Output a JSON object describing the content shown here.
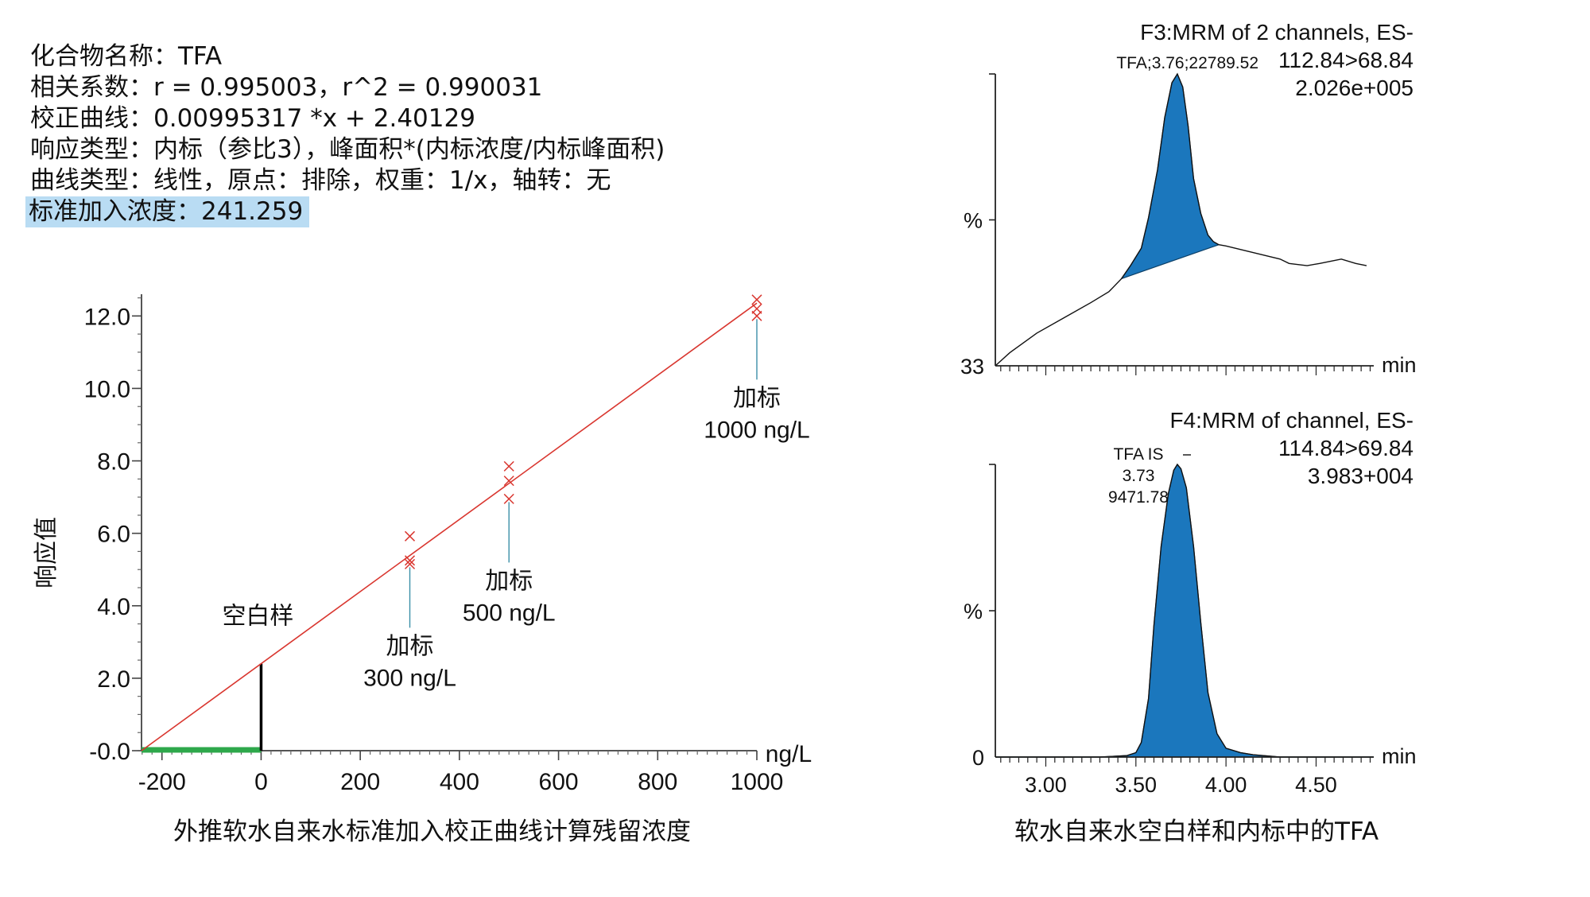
{
  "info": {
    "compound": "化合物名称：TFA",
    "correlation": "相关系数：r = 0.995003，r^2 = 0.990031",
    "calibration": "校正曲线：0.00995317 *x + 2.40129",
    "response": "响应类型：内标（参比3），峰面积*(内标浓度/内标峰面积)",
    "curve": "曲线类型：线性，原点：排除，权重：1/x，轴转：无",
    "std_addition": "标准加入浓度：241.259"
  },
  "captions": {
    "left": "外推软水自来水标准加入校正曲线计算残留浓度",
    "right": "软水自来水空白样和内标中的TFA"
  },
  "colors": {
    "fit": "#d9362f",
    "marker": "#d9362f",
    "extrapolation": "#2ea84b",
    "peak": "#1b77bd",
    "leader": "#3b8fa8"
  },
  "chart_data": [
    {
      "type": "scatter",
      "title": "",
      "xlabel": "ng/L",
      "ylabel": "响应值",
      "xlim": [
        -241.259,
        1000
      ],
      "ylim": [
        0,
        12.6
      ],
      "xticks": [
        -200,
        0,
        200,
        400,
        600,
        800,
        1000
      ],
      "xtick_labels": [
        "-200",
        "0",
        "200",
        "400",
        "600",
        "800",
        "1000"
      ],
      "yticks": [
        0,
        2,
        4,
        6,
        8,
        10,
        12
      ],
      "ytick_labels": [
        "-0.0",
        "2.0",
        "4.0",
        "6.0",
        "8.0",
        "10.0",
        "12.0"
      ],
      "fit": {
        "slope": 0.00995317,
        "intercept": 2.40129
      },
      "blank": {
        "x": 0,
        "y": 2.40129
      },
      "x_intercept": -241.259,
      "series": [
        {
          "x": [
            300,
            300,
            300,
            500,
            500,
            500,
            1000,
            1000,
            1000
          ],
          "y": [
            5.92,
            5.25,
            5.15,
            7.85,
            7.45,
            6.95,
            12.45,
            12.2,
            12.0
          ]
        }
      ],
      "annotations": [
        {
          "text": [
            "空白样"
          ],
          "x": 0,
          "y": 2.40129,
          "pos": "above"
        },
        {
          "text": [
            "加标",
            "300 ng/L"
          ],
          "x": 300,
          "y": 5.15,
          "pos": "below"
        },
        {
          "text": [
            "加标",
            "500 ng/L"
          ],
          "x": 500,
          "y": 6.95,
          "pos": "below"
        },
        {
          "text": [
            "加标",
            "1000 ng/L"
          ],
          "x": 1000,
          "y": 12.0,
          "pos": "below"
        }
      ]
    },
    {
      "type": "area",
      "title": "F3:MRM of 2 channels, ES-",
      "transition": "112.84>68.84",
      "intensity": "2.026e+005",
      "peak_label": "TFA;3.76;22789.52",
      "ylabel": "%",
      "y_min_label": "33",
      "xlabel": "min",
      "xlim": [
        2.72,
        4.82
      ],
      "ylim": [
        33,
        100
      ],
      "trace_x": [
        2.72,
        2.8,
        2.95,
        3.1,
        3.25,
        3.35,
        3.42,
        3.47,
        3.53,
        3.57,
        3.62,
        3.66,
        3.7,
        3.73,
        3.76,
        3.79,
        3.82,
        3.86,
        3.9,
        3.93,
        3.96,
        4.0,
        4.1,
        4.2,
        4.3,
        4.35,
        4.45,
        4.52,
        4.58,
        4.64,
        4.72,
        4.78
      ],
      "trace_y": [
        33,
        36,
        40.5,
        44,
        47.5,
        50,
        53,
        56,
        60,
        67,
        78,
        90,
        98,
        100,
        97,
        88,
        76,
        68,
        63,
        61.5,
        60.8,
        60.5,
        59.5,
        58.5,
        57.5,
        56.5,
        56,
        56.5,
        57,
        57.5,
        56.5,
        56
      ],
      "peak_start": 3.42,
      "peak_end": 3.96
    },
    {
      "type": "area",
      "title": "F4:MRM of channel, ES-",
      "transition": "114.84>69.84",
      "intensity": "3.983+004",
      "peak_label": [
        "TFA IS",
        "3.73",
        "9471.78"
      ],
      "ylabel": "%",
      "y_min_label": "0",
      "xlabel": "min",
      "xlim": [
        2.72,
        4.82
      ],
      "ylim": [
        0,
        100
      ],
      "xticks": [
        3.0,
        3.5,
        4.0,
        4.5
      ],
      "xtick_labels": [
        "3.00",
        "3.50",
        "4.00",
        "4.50"
      ],
      "trace_x": [
        2.72,
        3.3,
        3.45,
        3.5,
        3.53,
        3.57,
        3.6,
        3.64,
        3.68,
        3.71,
        3.73,
        3.75,
        3.78,
        3.82,
        3.86,
        3.9,
        3.95,
        4.0,
        4.08,
        4.15,
        4.3,
        4.82
      ],
      "trace_y": [
        0,
        0,
        0.5,
        1.5,
        5,
        20,
        45,
        72,
        90,
        98,
        100,
        98.5,
        92,
        72,
        46,
        22,
        8,
        3,
        1.5,
        0.8,
        0,
        0
      ]
    }
  ]
}
